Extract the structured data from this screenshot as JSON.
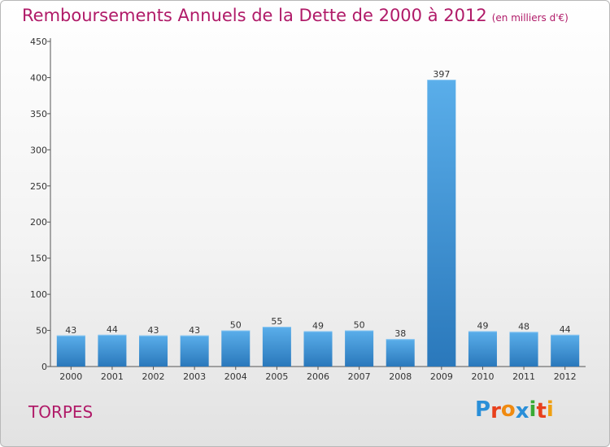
{
  "title": "Remboursements Annuels de la Dette de 2000 à 2012",
  "subtitle": "(en milliers d'€)",
  "town": "TORPES",
  "logo": {
    "letters": [
      "P",
      "r",
      "o",
      "x",
      "i",
      "t",
      "i"
    ],
    "colors": [
      "#2a8fd8",
      "#e8401c",
      "#f08a10",
      "#2a8fd8",
      "#3aaa35",
      "#e8401c",
      "#f0a010"
    ]
  },
  "colors": {
    "bar_light": "#5aaeea",
    "bar_dark": "#2a78bb",
    "title": "#b01a68"
  },
  "chart_data": {
    "type": "bar",
    "title": "Remboursements Annuels de la Dette de 2000 à 2012",
    "subtitle": "(en milliers d'€)",
    "categories": [
      "2000",
      "2001",
      "2002",
      "2003",
      "2004",
      "2005",
      "2006",
      "2007",
      "2008",
      "2009",
      "2010",
      "2011",
      "2012"
    ],
    "values": [
      43,
      44,
      43,
      43,
      50,
      55,
      49,
      50,
      38,
      397,
      49,
      48,
      44
    ],
    "value_labels": [
      "43",
      "44",
      "43",
      "43",
      "50",
      "55",
      "49",
      "50",
      "38",
      "397",
      "49",
      "48",
      "44"
    ],
    "ylim": [
      0,
      450
    ],
    "yticks": [
      "0",
      "50",
      "100",
      "150",
      "200",
      "250",
      "300",
      "350",
      "400",
      "450"
    ],
    "grid": false,
    "xlabel": "",
    "ylabel": ""
  }
}
